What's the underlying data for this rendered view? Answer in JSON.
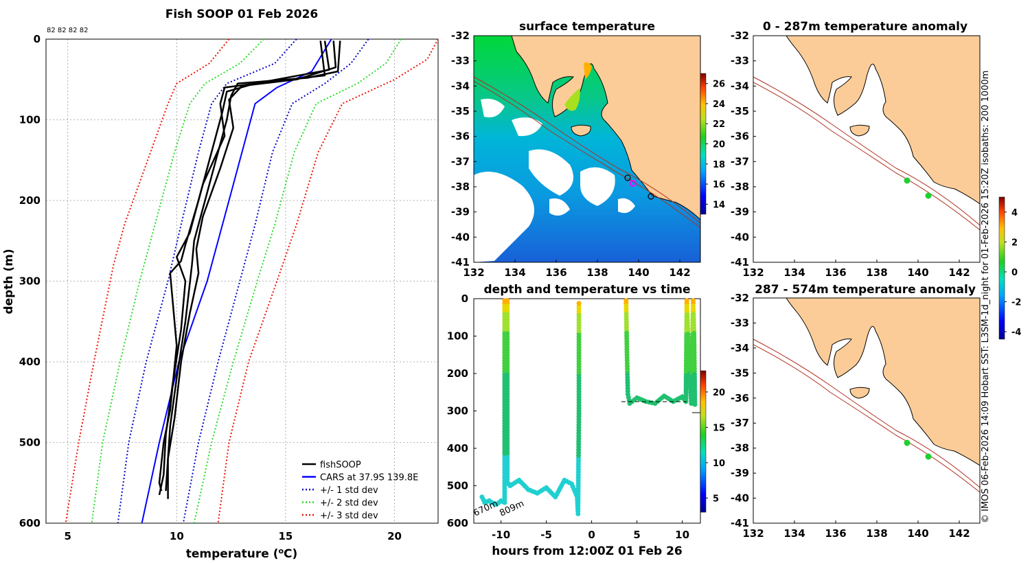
{
  "figure_title": "Fish SOOP 01 Feb 2026",
  "counts_label": "82 82 82 82",
  "side_note": "© IMOS 06-Feb-2026 14:09 Hobart SST: L3SM-1d_night for 01-Feb-2026 15:20Z isobaths: 200  1000m",
  "colors": {
    "land": "#fccc98",
    "fish": "#000000",
    "cars": "#0000ff",
    "std1": "#0000cc",
    "std2": "#22dd22",
    "std3": "#ee1100",
    "isobath": "#b03020"
  },
  "chart_data": [
    {
      "id": "profile",
      "type": "line",
      "title": "Fish SOOP 01 Feb 2026",
      "xlabel": "temperature (°C)",
      "ylabel": "depth (m)",
      "xlim": [
        4,
        22
      ],
      "ylim": [
        600,
        0
      ],
      "xticks": [
        5,
        10,
        15,
        20
      ],
      "yticks": [
        0,
        100,
        200,
        300,
        400,
        500,
        600
      ],
      "legend": [
        "fishSOOP",
        "CARS at 37.9S 139.8E",
        "+/- 1 std dev",
        "+/- 2 std dev",
        "+/- 3 std dev"
      ],
      "legend_position": "bottom-right",
      "series": [
        {
          "name": "CARS at 37.9S 139.8E",
          "depth": [
            0,
            40,
            60,
            80,
            120,
            200,
            260,
            300,
            400,
            500,
            600
          ],
          "temp": [
            17.1,
            16.2,
            14.6,
            13.6,
            13.2,
            12.4,
            11.8,
            11.4,
            10.1,
            9.2,
            8.4
          ]
        },
        {
          "name": "+1 std",
          "depth": [
            0,
            30,
            55,
            80,
            140,
            230,
            300,
            400,
            500,
            600
          ],
          "temp": [
            18.8,
            18.0,
            16.8,
            15.3,
            14.4,
            13.6,
            12.9,
            11.9,
            11.0,
            10.3
          ]
        },
        {
          "name": "-1 std",
          "depth": [
            0,
            30,
            55,
            80,
            140,
            230,
            300,
            400,
            500,
            600
          ],
          "temp": [
            15.5,
            14.5,
            12.3,
            11.6,
            11.0,
            10.2,
            9.6,
            8.6,
            7.8,
            7.3
          ]
        },
        {
          "name": "+2 std",
          "depth": [
            0,
            30,
            55,
            80,
            140,
            230,
            300,
            400,
            500,
            600
          ],
          "temp": [
            20.3,
            19.6,
            18.3,
            16.4,
            15.4,
            14.5,
            13.7,
            12.6,
            11.6,
            10.8
          ]
        },
        {
          "name": "-2 std",
          "depth": [
            0,
            30,
            55,
            80,
            140,
            230,
            300,
            400,
            500,
            600
          ],
          "temp": [
            14.0,
            12.9,
            11.3,
            10.6,
            9.9,
            9.0,
            8.3,
            7.4,
            6.6,
            6.1
          ]
        },
        {
          "name": "+3 std",
          "depth": [
            0,
            25,
            50,
            80,
            140,
            230,
            300,
            400,
            500,
            600
          ],
          "temp": [
            22.0,
            21.5,
            20.0,
            17.6,
            16.5,
            15.5,
            14.6,
            13.3,
            12.4,
            11.9
          ]
        },
        {
          "name": "-3 std",
          "depth": [
            0,
            30,
            55,
            80,
            140,
            230,
            280,
            400,
            500,
            600
          ],
          "temp": [
            12.4,
            11.5,
            10.0,
            9.6,
            8.8,
            7.6,
            7.1,
            6.2,
            5.5,
            4.9
          ]
        },
        {
          "name": "fishSOOP A",
          "depth": [
            2,
            40,
            48,
            55,
            70,
            100,
            150,
            200,
            250,
            280,
            350,
            420,
            480,
            520,
            560
          ],
          "temp": [
            17.5,
            17.4,
            16.0,
            12.8,
            12.5,
            12.3,
            11.8,
            11.3,
            10.8,
            10.7,
            10.4,
            10.0,
            9.7,
            9.6,
            9.5
          ]
        },
        {
          "name": "fishSOOP B",
          "depth": [
            2,
            45,
            52,
            60,
            80,
            120,
            180,
            240,
            270,
            300,
            360,
            430,
            490,
            540,
            565
          ],
          "temp": [
            16.6,
            16.8,
            14.5,
            12.2,
            12.0,
            12.2,
            11.2,
            10.6,
            10.0,
            10.4,
            10.2,
            9.8,
            9.5,
            9.4,
            9.2
          ]
        },
        {
          "name": "fishSOOP C",
          "depth": [
            2,
            35,
            50,
            58,
            75,
            110,
            160,
            220,
            260,
            290,
            340,
            400,
            470,
            520,
            570
          ],
          "temp": [
            17.2,
            17.3,
            15.5,
            13.0,
            12.4,
            12.6,
            12.0,
            11.2,
            10.9,
            11.0,
            10.6,
            10.2,
            9.9,
            9.6,
            9.6
          ]
        },
        {
          "name": "fishSOOP D",
          "depth": [
            2,
            38,
            55,
            65,
            90,
            140,
            200,
            255,
            275,
            290,
            380,
            460,
            500,
            550,
            560
          ],
          "temp": [
            16.8,
            17.0,
            13.6,
            12.3,
            12.1,
            11.6,
            11.0,
            10.4,
            10.2,
            9.7,
            10.0,
            9.7,
            9.4,
            9.2,
            9.3
          ]
        }
      ]
    },
    {
      "id": "sst-map",
      "type": "heatmap",
      "title": "surface temperature",
      "xlim": [
        132,
        143
      ],
      "ylim": [
        -41,
        -32
      ],
      "xticks": [
        132,
        134,
        136,
        138,
        140,
        142
      ],
      "yticks": [
        -32,
        -33,
        -34,
        -35,
        -36,
        -37,
        -38,
        -39,
        -40,
        -41
      ],
      "colorbar": {
        "range": [
          13,
          27
        ],
        "ticks": [
          14,
          16,
          18,
          20,
          22,
          24,
          26
        ]
      }
    },
    {
      "id": "depth-time",
      "type": "scatter",
      "title": "depth and temperature vs time",
      "xlabel": "hours from 12:00Z 01 Feb 26",
      "xlim": [
        -13,
        12
      ],
      "ylim": [
        600,
        0
      ],
      "xticks": [
        -10,
        -5,
        0,
        5,
        10
      ],
      "yticks": [
        0,
        100,
        200,
        300,
        400,
        500,
        600
      ],
      "colorbar": {
        "range": [
          3,
          23
        ],
        "ticks": [
          5,
          10,
          15,
          20
        ]
      },
      "annotations": [
        "670m",
        "809m"
      ],
      "segments": [
        {
          "t": [
            -12.1,
            -11.8,
            -11.3,
            -11.0,
            -10.5,
            -10.0,
            -9.6,
            -9.6,
            -9.45,
            -9.3,
            -9.3,
            -9.0,
            -8.0,
            -7.0,
            -6.0,
            -5.0,
            -4.0,
            -3.0,
            -2.2,
            -1.6,
            -1.5,
            -1.4,
            -1.4
          ],
          "d": [
            530,
            545,
            540,
            545,
            550,
            540,
            545,
            5,
            200,
            5,
            490,
            500,
            485,
            510,
            520,
            505,
            530,
            485,
            495,
            530,
            575,
            300,
            5
          ]
        },
        {
          "t": [
            3.8,
            3.9,
            4.0,
            4.2,
            5.0,
            6.0,
            7.0,
            8.0,
            9.0,
            10.0,
            10.4,
            10.5,
            10.6,
            10.8,
            11.0,
            11.2,
            11.3,
            11.4
          ],
          "d": [
            5,
            150,
            255,
            280,
            265,
            275,
            280,
            260,
            275,
            262,
            275,
            5,
            80,
            200,
            280,
            5,
            100,
            290
          ]
        }
      ]
    },
    {
      "id": "anomaly-0-287",
      "type": "heatmap",
      "title": "0 - 287m temperature anomaly",
      "xlim": [
        132,
        143
      ],
      "ylim": [
        -41,
        -32
      ],
      "xticks": [
        132,
        134,
        136,
        138,
        140,
        142
      ],
      "yticks": [
        -32,
        -33,
        -34,
        -35,
        -36,
        -37,
        -38,
        -39,
        -40,
        -41
      ]
    },
    {
      "id": "anomaly-287-574",
      "type": "heatmap",
      "title": "287 - 574m temperature anomaly",
      "xlim": [
        132,
        143
      ],
      "ylim": [
        -41,
        -32
      ],
      "xticks": [
        132,
        134,
        136,
        138,
        140,
        142
      ],
      "yticks": [
        -32,
        -33,
        -34,
        -35,
        -36,
        -37,
        -38,
        -39,
        -40,
        -41
      ],
      "colorbar": {
        "range": [
          -4.5,
          5
        ],
        "ticks": [
          -4,
          -2,
          0,
          2,
          4
        ]
      }
    }
  ]
}
